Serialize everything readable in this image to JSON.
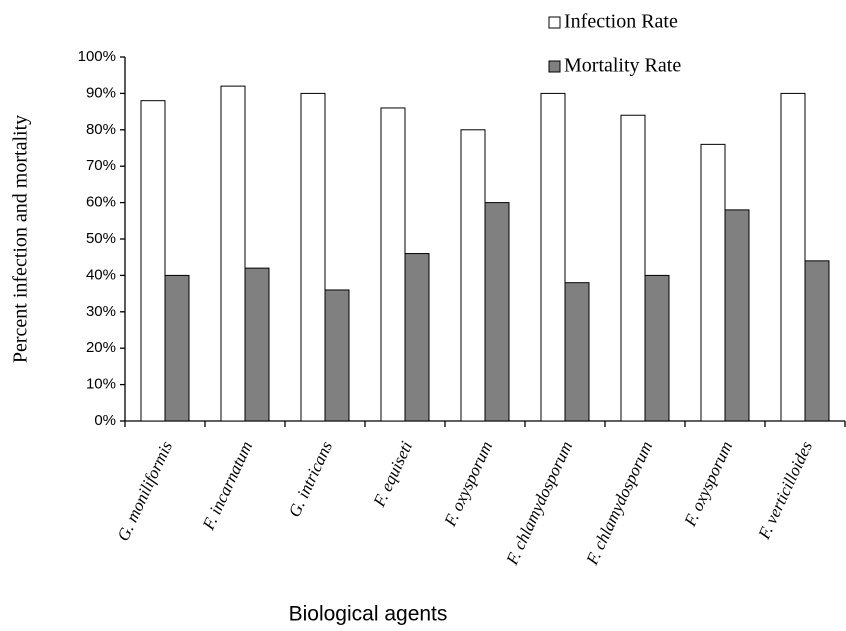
{
  "chart_data": {
    "type": "bar",
    "x_label": "Biological agents",
    "y_label": "Percent infection and mortality",
    "categories": [
      "G. moniliformis",
      "F. incarnatum",
      "G. intricans",
      "F. equiseti",
      "F. oxysporum",
      "F. chlamydosporum",
      "F. chlamydosporum",
      "F. oxysporum",
      "F. verticilloides"
    ],
    "series": [
      {
        "name": "Infection Rate",
        "color": "#ffffff",
        "values": [
          88,
          92,
          90,
          86,
          80,
          90,
          84,
          76,
          90
        ]
      },
      {
        "name": "Mortality Rate",
        "color": "#808080",
        "values": [
          40,
          42,
          36,
          46,
          60,
          38,
          40,
          58,
          44
        ]
      }
    ],
    "ylim": [
      0,
      100
    ],
    "yticks": [
      {
        "value": 0,
        "label": "0%"
      },
      {
        "value": 10,
        "label": "10%"
      },
      {
        "value": 20,
        "label": "20%"
      },
      {
        "value": 30,
        "label": "30%"
      },
      {
        "value": 40,
        "label": "40%"
      },
      {
        "value": 50,
        "label": "50%"
      },
      {
        "value": 60,
        "label": "60%"
      },
      {
        "value": 70,
        "label": "70%"
      },
      {
        "value": 80,
        "label": "80%"
      },
      {
        "value": 90,
        "label": "90%"
      },
      {
        "value": 100,
        "label": "100%"
      }
    ],
    "grid": false,
    "legend": "top-right"
  }
}
